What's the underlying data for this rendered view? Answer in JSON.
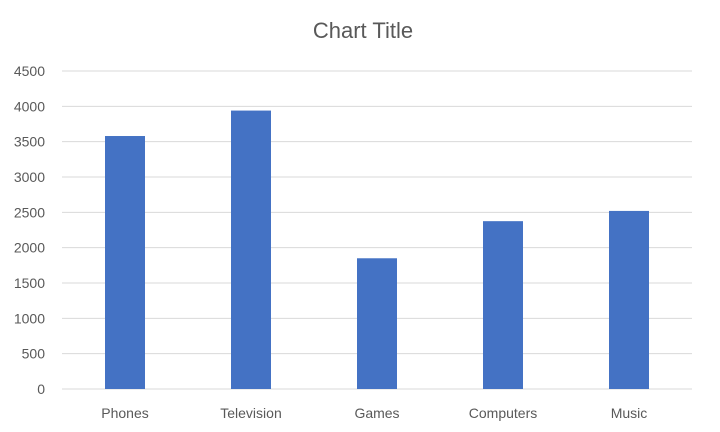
{
  "chart_data": {
    "type": "bar",
    "title": "Chart Title",
    "categories": [
      "Phones",
      "Television",
      "Games",
      "Computers",
      "Music"
    ],
    "values": [
      3580,
      3940,
      1850,
      2375,
      2520
    ],
    "xlabel": "",
    "ylabel": "",
    "ylim": [
      0,
      4500
    ],
    "yticks": [
      0,
      500,
      1000,
      1500,
      2000,
      2500,
      3000,
      3500,
      4000,
      4500
    ],
    "grid": true,
    "legend": "none",
    "colors": {
      "bar": "#4472C4",
      "grid": "#D9D9D9",
      "text": "#595959"
    }
  }
}
